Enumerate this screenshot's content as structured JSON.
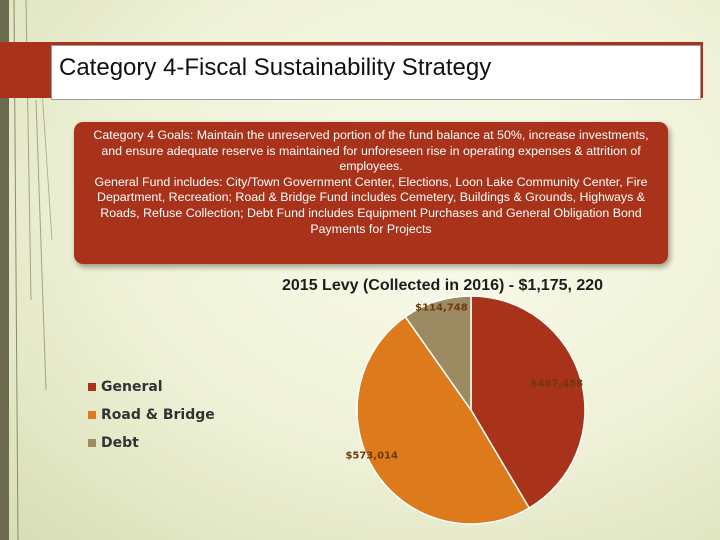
{
  "slide": {
    "title": "Category 4-Fiscal Sustainability Strategy",
    "goals": [
      "Category 4 Goals: Maintain the unreserved portion of the fund balance at 50%, increase investments, and ensure adequate reserve is maintained for unforeseen rise in operating expenses & attrition of employees.",
      "General Fund includes: City/Town Government Center, Elections, Loon Lake Community Center, Fire Department, Recreation; Road & Bridge Fund includes Cemetery, Buildings & Grounds, Highways & Roads, Refuse Collection; Debt Fund includes Equipment Purchases and General Obligation Bond Payments for Projects"
    ]
  },
  "colors": {
    "accent": "#a8331a",
    "general": "#a8331a",
    "road_bridge": "#dd7b1c",
    "debt": "#9c8a62"
  },
  "chart_data": {
    "type": "pie",
    "title": "2015 Levy (Collected in 2016) - $1,175, 220",
    "categories": [
      "General",
      "Road & Bridge",
      "Debt"
    ],
    "values": [
      487458,
      573014,
      114748
    ],
    "data_labels": [
      "$487,458",
      "$573,014",
      "$114,748"
    ],
    "colors": [
      "#a8331a",
      "#dd7b1c",
      "#9c8a62"
    ],
    "legend_position": "left"
  }
}
